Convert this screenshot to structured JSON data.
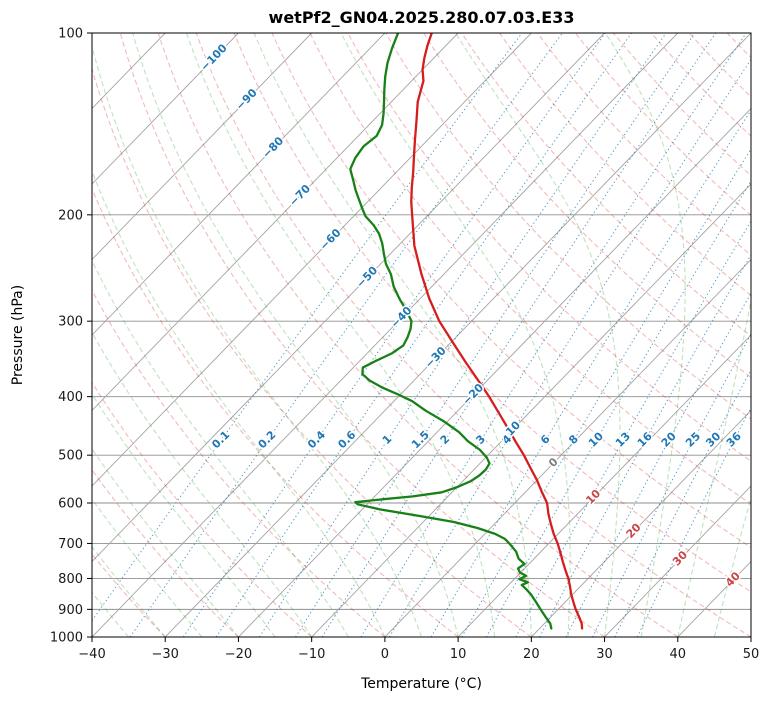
{
  "title": "wetPf2_GN04.2025.280.07.03.E33",
  "axes": {
    "xlabel": "Temperature (°C)",
    "ylabel": "Pressure (hPa)",
    "x_ticks": [
      {
        "v": -40,
        "label": "−40"
      },
      {
        "v": -30,
        "label": "−30"
      },
      {
        "v": -20,
        "label": "−20"
      },
      {
        "v": -10,
        "label": "−10"
      },
      {
        "v": 0,
        "label": "0"
      },
      {
        "v": 10,
        "label": "10"
      },
      {
        "v": 20,
        "label": "20"
      },
      {
        "v": 30,
        "label": "30"
      },
      {
        "v": 40,
        "label": "40"
      },
      {
        "v": 50,
        "label": "50"
      }
    ],
    "y_ticks": [
      {
        "v": 100,
        "label": "100"
      },
      {
        "v": 200,
        "label": "200"
      },
      {
        "v": 300,
        "label": "300"
      },
      {
        "v": 400,
        "label": "400"
      },
      {
        "v": 500,
        "label": "500"
      },
      {
        "v": 600,
        "label": "600"
      },
      {
        "v": 700,
        "label": "700"
      },
      {
        "v": 800,
        "label": "800"
      },
      {
        "v": 900,
        "label": "900"
      },
      {
        "v": 1000,
        "label": "1000"
      }
    ]
  },
  "chart_data": {
    "type": "line",
    "chart_kind": "skewT-logP-sounding",
    "title": "wetPf2_GN04.2025.280.07.03.E33",
    "xlabel": "Temperature (°C)",
    "ylabel": "Pressure (hPa)",
    "xlim": [
      -40,
      50
    ],
    "pressure_lim": [
      1000,
      100
    ],
    "skew_degC_per_decade": 80,
    "grid": true,
    "colors": {
      "temperature": "#d61d1d",
      "dewpoint": "#178017",
      "isotherm": "#a3a3a3",
      "pressure_grid": "#8f8f8f",
      "dry_adiabat": "rgba(214,39,40,0.32)",
      "moist_adiabat": "rgba(44,160,44,0.30)",
      "mixing_line": "rgba(31,119,180,0.75)",
      "label_blue": "#1f77b4",
      "label_red": "#c94444",
      "label_gray": "#7f7f7f"
    },
    "series": [
      {
        "name": "temperature",
        "points_p_t": [
          [
            968,
            25.8
          ],
          [
            950,
            25.1
          ],
          [
            925,
            23.8
          ],
          [
            900,
            22.4
          ],
          [
            875,
            21.1
          ],
          [
            850,
            19.8
          ],
          [
            825,
            18.6
          ],
          [
            800,
            17.3
          ],
          [
            775,
            15.8
          ],
          [
            750,
            14.3
          ],
          [
            725,
            12.8
          ],
          [
            700,
            11.2
          ],
          [
            675,
            9.4
          ],
          [
            650,
            7.7
          ],
          [
            625,
            6.0
          ],
          [
            600,
            4.4
          ],
          [
            575,
            2.2
          ],
          [
            550,
            0.0
          ],
          [
            525,
            -2.5
          ],
          [
            500,
            -5.1
          ],
          [
            475,
            -8.0
          ],
          [
            450,
            -11.0
          ],
          [
            425,
            -14.2
          ],
          [
            400,
            -17.6
          ],
          [
            375,
            -21.4
          ],
          [
            350,
            -25.5
          ],
          [
            325,
            -29.8
          ],
          [
            300,
            -34.4
          ],
          [
            275,
            -38.8
          ],
          [
            250,
            -43.2
          ],
          [
            225,
            -47.8
          ],
          [
            200,
            -52.2
          ],
          [
            190,
            -54.1
          ],
          [
            180,
            -55.9
          ],
          [
            170,
            -57.7
          ],
          [
            160,
            -59.7
          ],
          [
            150,
            -61.8
          ],
          [
            140,
            -64.0
          ],
          [
            130,
            -66.4
          ],
          [
            120,
            -68.4
          ],
          [
            115,
            -70.0
          ],
          [
            110,
            -71.3
          ],
          [
            105,
            -72.5
          ],
          [
            100,
            -73.6
          ]
        ]
      },
      {
        "name": "dewpoint",
        "points_p_t": [
          [
            968,
            21.6
          ],
          [
            950,
            20.8
          ],
          [
            925,
            19.2
          ],
          [
            900,
            17.6
          ],
          [
            875,
            16.0
          ],
          [
            850,
            14.3
          ],
          [
            835,
            13.1
          ],
          [
            820,
            11.8
          ],
          [
            812,
            12.3
          ],
          [
            802,
            10.7
          ],
          [
            792,
            11.2
          ],
          [
            782,
            9.9
          ],
          [
            770,
            9.1
          ],
          [
            757,
            9.4
          ],
          [
            742,
            7.9
          ],
          [
            722,
            6.6
          ],
          [
            700,
            4.6
          ],
          [
            688,
            3.4
          ],
          [
            675,
            1.4
          ],
          [
            660,
            -1.8
          ],
          [
            645,
            -5.8
          ],
          [
            630,
            -11.5
          ],
          [
            615,
            -17.5
          ],
          [
            603,
            -21.3
          ],
          [
            598,
            -21.9
          ],
          [
            592,
            -18.8
          ],
          [
            585,
            -14.8
          ],
          [
            576,
            -11.4
          ],
          [
            565,
            -10.0
          ],
          [
            552,
            -8.9
          ],
          [
            540,
            -8.5
          ],
          [
            528,
            -8.4
          ],
          [
            516,
            -8.7
          ],
          [
            505,
            -9.8
          ],
          [
            490,
            -11.8
          ],
          [
            474,
            -14.6
          ],
          [
            458,
            -17.0
          ],
          [
            440,
            -20.4
          ],
          [
            422,
            -24.4
          ],
          [
            407,
            -27.5
          ],
          [
            396,
            -30.5
          ],
          [
            386,
            -33.5
          ],
          [
            376,
            -36.1
          ],
          [
            367,
            -37.9
          ],
          [
            358,
            -38.7
          ],
          [
            349,
            -37.8
          ],
          [
            339,
            -36.6
          ],
          [
            329,
            -36.1
          ],
          [
            319,
            -36.6
          ],
          [
            309,
            -37.3
          ],
          [
            300,
            -38.2
          ],
          [
            288,
            -40.3
          ],
          [
            276,
            -42.7
          ],
          [
            263,
            -45.2
          ],
          [
            251,
            -47.2
          ],
          [
            241,
            -49.3
          ],
          [
            232,
            -50.9
          ],
          [
            223,
            -52.5
          ],
          [
            215,
            -54.2
          ],
          [
            208,
            -56.1
          ],
          [
            201,
            -58.4
          ],
          [
            195,
            -59.9
          ],
          [
            189,
            -61.4
          ],
          [
            182,
            -63.2
          ],
          [
            175,
            -64.9
          ],
          [
            168,
            -66.7
          ],
          [
            161,
            -67.5
          ],
          [
            154,
            -67.9
          ],
          [
            148,
            -67.5
          ],
          [
            142,
            -68.2
          ],
          [
            136,
            -69.5
          ],
          [
            130,
            -71.0
          ],
          [
            124,
            -72.6
          ],
          [
            118,
            -74.2
          ],
          [
            112,
            -75.7
          ],
          [
            106,
            -77.0
          ],
          [
            100,
            -78.2
          ]
        ]
      }
    ],
    "isotherms": {
      "start": -130,
      "end": 50,
      "step": 10
    },
    "isotherm_labels": [
      {
        "t": -100,
        "p": 110,
        "label": "−100",
        "color": "#1f77b4"
      },
      {
        "t": -90,
        "p": 129,
        "label": "−90",
        "color": "#1f77b4"
      },
      {
        "t": -80,
        "p": 155,
        "label": "−80",
        "color": "#1f77b4"
      },
      {
        "t": -70,
        "p": 186,
        "label": "−70",
        "color": "#1f77b4"
      },
      {
        "t": -60,
        "p": 220,
        "label": "−60",
        "color": "#1f77b4"
      },
      {
        "t": -50,
        "p": 254,
        "label": "−50",
        "color": "#1f77b4"
      },
      {
        "t": -40,
        "p": 296,
        "label": "−40",
        "color": "#1f77b4"
      },
      {
        "t": -30,
        "p": 345,
        "label": "−30",
        "color": "#1f77b4"
      },
      {
        "t": -20,
        "p": 397,
        "label": "−20",
        "color": "#1f77b4"
      },
      {
        "t": -10,
        "p": 458,
        "label": "−10",
        "color": "#1f77b4"
      },
      {
        "t": 0,
        "p": 515,
        "label": "0",
        "color": "#7f7f7f"
      },
      {
        "t": 10,
        "p": 587,
        "label": "10",
        "color": "#c94444"
      },
      {
        "t": 20,
        "p": 668,
        "label": "20",
        "color": "#c94444"
      },
      {
        "t": 30,
        "p": 742,
        "label": "30",
        "color": "#c94444"
      },
      {
        "t": 40,
        "p": 804,
        "label": "40",
        "color": "#c94444"
      }
    ],
    "mixing_ratio_lines": {
      "values_g_kg": [
        0.1,
        0.2,
        0.4,
        0.6,
        1,
        1.5,
        2,
        3,
        4,
        6,
        8,
        10,
        13,
        16,
        20,
        25,
        30,
        36
      ],
      "labels": [
        "0.1",
        "0.2",
        "0.4",
        "0.6",
        "1",
        "1.5",
        "2",
        "3",
        "4",
        "6",
        "8",
        "10",
        "13",
        "16",
        "20",
        "25",
        "30",
        "36"
      ],
      "label_pressure": 472
    },
    "dry_adiabats": {
      "theta_start": -30,
      "theta_end": 200,
      "step": 10
    },
    "moist_adiabats": {
      "thetaw_start": -40,
      "thetaw_end": 45,
      "step": 5
    }
  }
}
